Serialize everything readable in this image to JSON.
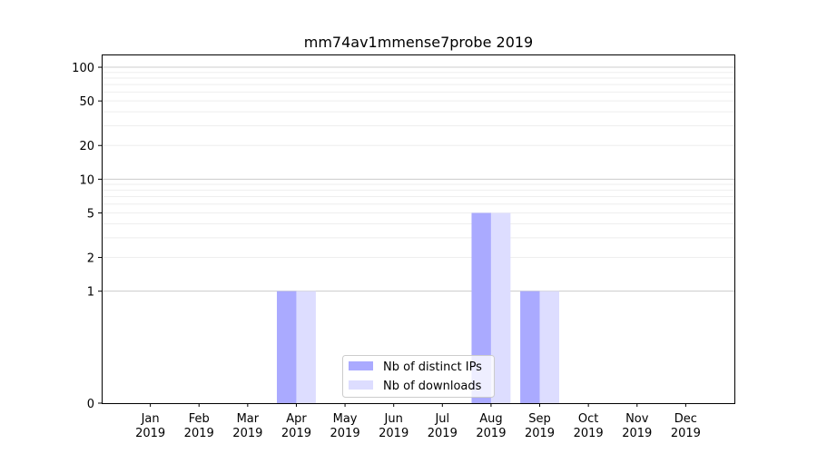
{
  "chart_data": {
    "type": "bar",
    "title": "mm74av1mmense7probe 2019",
    "xlabel": "",
    "ylabel": "",
    "y_scale": "symlog",
    "ylim": [
      0,
      130
    ],
    "y_ticks": [
      0,
      1,
      2,
      5,
      10,
      20,
      50,
      100
    ],
    "y_tick_labels": [
      "0",
      "1",
      "2",
      "5",
      "10",
      "20",
      "50",
      "100"
    ],
    "categories": [
      {
        "month": "Jan",
        "year": "2019"
      },
      {
        "month": "Feb",
        "year": "2019"
      },
      {
        "month": "Mar",
        "year": "2019"
      },
      {
        "month": "Apr",
        "year": "2019"
      },
      {
        "month": "May",
        "year": "2019"
      },
      {
        "month": "Jun",
        "year": "2019"
      },
      {
        "month": "Jul",
        "year": "2019"
      },
      {
        "month": "Aug",
        "year": "2019"
      },
      {
        "month": "Sep",
        "year": "2019"
      },
      {
        "month": "Oct",
        "year": "2019"
      },
      {
        "month": "Nov",
        "year": "2019"
      },
      {
        "month": "Dec",
        "year": "2019"
      }
    ],
    "series": [
      {
        "name": "Nb of distinct IPs",
        "color": "#aaaaff",
        "values": [
          0,
          0,
          0,
          1,
          0,
          0,
          0,
          5,
          1,
          0,
          0,
          0
        ]
      },
      {
        "name": "Nb of downloads",
        "color": "#ddddff",
        "values": [
          0,
          0,
          0,
          1,
          0,
          0,
          0,
          5,
          1,
          0,
          0,
          0
        ]
      }
    ],
    "grid": true,
    "legend_position": "lower-center"
  }
}
